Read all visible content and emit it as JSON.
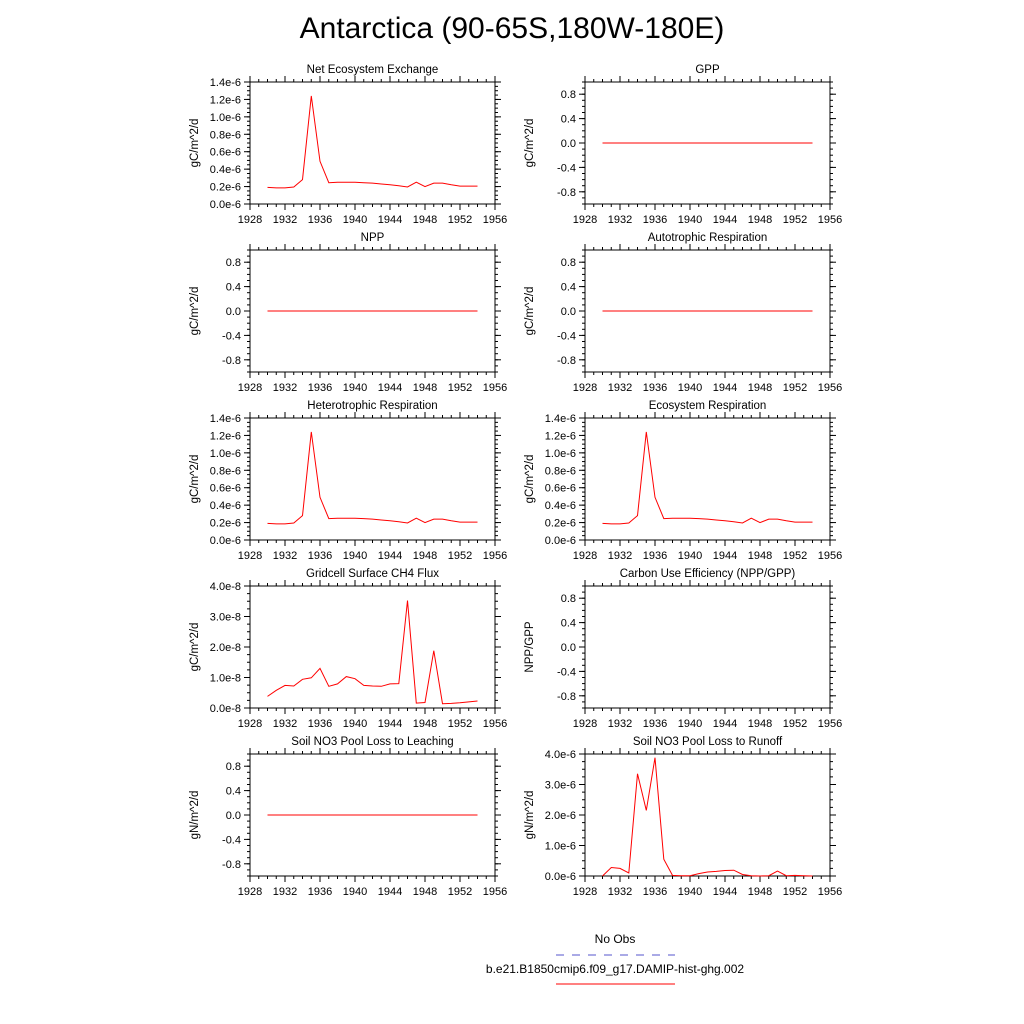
{
  "title": "Antarctica (90-65S,180W-180E)",
  "legend": {
    "obs_label": "No Obs",
    "obs_color": "#5555cc",
    "model_label": "b.e21.B1850cmip6.f09_g17.DAMIP-hist-ghg.002",
    "model_color": "#ff0000"
  },
  "chart_data": [
    {
      "type": "line",
      "title": "Net Ecosystem Exchange",
      "ylabel": "gC/m^2/d",
      "xlim": [
        1928,
        1956
      ],
      "xticks": [
        "1928",
        "1932",
        "1936",
        "1940",
        "1944",
        "1948",
        "1952",
        "1956"
      ],
      "ylim": [
        0,
        1.4e-06
      ],
      "yticks": [
        0,
        2e-07,
        4e-07,
        6e-07,
        8e-07,
        1e-06,
        1.2e-06,
        1.4e-06
      ],
      "yticklabels": [
        "0.0e-6",
        "0.2e-6",
        "0.4e-6",
        "0.6e-6",
        "0.8e-6",
        "1.0e-6",
        "1.2e-6",
        "1.4e-6"
      ],
      "series": [
        {
          "color": "#ff0000",
          "x": [
            1930,
            1931,
            1932,
            1933,
            1934,
            1935,
            1936,
            1937,
            1938,
            1939,
            1940,
            1941,
            1942,
            1943,
            1944,
            1945,
            1946,
            1947,
            1948,
            1949,
            1950,
            1951,
            1952,
            1953,
            1954
          ],
          "y": [
            1.9e-07,
            1.85e-07,
            1.85e-07,
            1.95e-07,
            2.8e-07,
            1.24e-06,
            4.9e-07,
            2.45e-07,
            2.5e-07,
            2.5e-07,
            2.5e-07,
            2.45e-07,
            2.4e-07,
            2.3e-07,
            2.2e-07,
            2.1e-07,
            1.95e-07,
            2.5e-07,
            2e-07,
            2.4e-07,
            2.4e-07,
            2.2e-07,
            2.05e-07,
            2.05e-07,
            2.05e-07
          ]
        }
      ]
    },
    {
      "type": "line",
      "title": "GPP",
      "ylabel": "gC/m^2/d",
      "xlim": [
        1928,
        1956
      ],
      "xticks": [
        "1928",
        "1932",
        "1936",
        "1940",
        "1944",
        "1948",
        "1952",
        "1956"
      ],
      "ylim": [
        -1,
        1
      ],
      "yticks": [
        -0.8,
        -0.4,
        0,
        0.4,
        0.8
      ],
      "yticklabels": [
        "-0.8",
        "-0.4",
        "0.0",
        "0.4",
        "0.8"
      ],
      "series": [
        {
          "color": "#ff0000",
          "x": [
            1930,
            1954
          ],
          "y": [
            0,
            0
          ]
        }
      ]
    },
    {
      "type": "line",
      "title": "NPP",
      "ylabel": "gC/m^2/d",
      "xlim": [
        1928,
        1956
      ],
      "xticks": [
        "1928",
        "1932",
        "1936",
        "1940",
        "1944",
        "1948",
        "1952",
        "1956"
      ],
      "ylim": [
        -1,
        1
      ],
      "yticks": [
        -0.8,
        -0.4,
        0,
        0.4,
        0.8
      ],
      "yticklabels": [
        "-0.8",
        "-0.4",
        "0.0",
        "0.4",
        "0.8"
      ],
      "series": [
        {
          "color": "#ff0000",
          "x": [
            1930,
            1954
          ],
          "y": [
            0,
            0
          ]
        }
      ]
    },
    {
      "type": "line",
      "title": "Autotrophic Respiration",
      "ylabel": "gC/m^2/d",
      "xlim": [
        1928,
        1956
      ],
      "xticks": [
        "1928",
        "1932",
        "1936",
        "1940",
        "1944",
        "1948",
        "1952",
        "1956"
      ],
      "ylim": [
        -1,
        1
      ],
      "yticks": [
        -0.8,
        -0.4,
        0,
        0.4,
        0.8
      ],
      "yticklabels": [
        "-0.8",
        "-0.4",
        "0.0",
        "0.4",
        "0.8"
      ],
      "series": [
        {
          "color": "#ff0000",
          "x": [
            1930,
            1954
          ],
          "y": [
            0,
            0
          ]
        }
      ]
    },
    {
      "type": "line",
      "title": "Heterotrophic Respiration",
      "ylabel": "gC/m^2/d",
      "xlim": [
        1928,
        1956
      ],
      "xticks": [
        "1928",
        "1932",
        "1936",
        "1940",
        "1944",
        "1948",
        "1952",
        "1956"
      ],
      "ylim": [
        0,
        1.4e-06
      ],
      "yticks": [
        0,
        2e-07,
        4e-07,
        6e-07,
        8e-07,
        1e-06,
        1.2e-06,
        1.4e-06
      ],
      "yticklabels": [
        "0.0e-6",
        "0.2e-6",
        "0.4e-6",
        "0.6e-6",
        "0.8e-6",
        "1.0e-6",
        "1.2e-6",
        "1.4e-6"
      ],
      "series": [
        {
          "color": "#ff0000",
          "x": [
            1930,
            1931,
            1932,
            1933,
            1934,
            1935,
            1936,
            1937,
            1938,
            1939,
            1940,
            1941,
            1942,
            1943,
            1944,
            1945,
            1946,
            1947,
            1948,
            1949,
            1950,
            1951,
            1952,
            1953,
            1954
          ],
          "y": [
            1.9e-07,
            1.85e-07,
            1.85e-07,
            1.95e-07,
            2.8e-07,
            1.24e-06,
            4.9e-07,
            2.45e-07,
            2.5e-07,
            2.5e-07,
            2.5e-07,
            2.45e-07,
            2.4e-07,
            2.3e-07,
            2.2e-07,
            2.1e-07,
            1.95e-07,
            2.5e-07,
            2e-07,
            2.4e-07,
            2.4e-07,
            2.2e-07,
            2.05e-07,
            2.05e-07,
            2.05e-07
          ]
        }
      ]
    },
    {
      "type": "line",
      "title": "Ecosystem Respiration",
      "ylabel": "gC/m^2/d",
      "xlim": [
        1928,
        1956
      ],
      "xticks": [
        "1928",
        "1932",
        "1936",
        "1940",
        "1944",
        "1948",
        "1952",
        "1956"
      ],
      "ylim": [
        0,
        1.4e-06
      ],
      "yticks": [
        0,
        2e-07,
        4e-07,
        6e-07,
        8e-07,
        1e-06,
        1.2e-06,
        1.4e-06
      ],
      "yticklabels": [
        "0.0e-6",
        "0.2e-6",
        "0.4e-6",
        "0.6e-6",
        "0.8e-6",
        "1.0e-6",
        "1.2e-6",
        "1.4e-6"
      ],
      "series": [
        {
          "color": "#ff0000",
          "x": [
            1930,
            1931,
            1932,
            1933,
            1934,
            1935,
            1936,
            1937,
            1938,
            1939,
            1940,
            1941,
            1942,
            1943,
            1944,
            1945,
            1946,
            1947,
            1948,
            1949,
            1950,
            1951,
            1952,
            1953,
            1954
          ],
          "y": [
            1.9e-07,
            1.85e-07,
            1.85e-07,
            1.95e-07,
            2.8e-07,
            1.24e-06,
            4.9e-07,
            2.45e-07,
            2.5e-07,
            2.5e-07,
            2.5e-07,
            2.45e-07,
            2.4e-07,
            2.3e-07,
            2.2e-07,
            2.1e-07,
            1.95e-07,
            2.5e-07,
            2e-07,
            2.4e-07,
            2.4e-07,
            2.2e-07,
            2.05e-07,
            2.05e-07,
            2.05e-07
          ]
        }
      ]
    },
    {
      "type": "line",
      "title": "Gridcell Surface CH4 Flux",
      "ylabel": "gC/m^2/d",
      "xlim": [
        1928,
        1956
      ],
      "xticks": [
        "1928",
        "1932",
        "1936",
        "1940",
        "1944",
        "1948",
        "1952",
        "1956"
      ],
      "ylim": [
        0,
        4e-08
      ],
      "yticks": [
        0,
        1e-08,
        2e-08,
        3e-08,
        4e-08
      ],
      "yticklabels": [
        "0.0e-8",
        "1.0e-8",
        "2.0e-8",
        "3.0e-8",
        "4.0e-8"
      ],
      "series": [
        {
          "color": "#ff0000",
          "x": [
            1930,
            1931,
            1932,
            1933,
            1934,
            1935,
            1936,
            1937,
            1938,
            1939,
            1940,
            1941,
            1942,
            1943,
            1944,
            1945,
            1946,
            1947,
            1948,
            1949,
            1950,
            1951,
            1952,
            1953,
            1954
          ],
          "y": [
            3.8e-09,
            5.8e-09,
            7.4e-09,
            7.2e-09,
            9.4e-09,
            9.9e-09,
            1.3e-08,
            7.1e-09,
            7.9e-09,
            1.03e-08,
            9.6e-09,
            7.4e-09,
            7.2e-09,
            7.1e-09,
            7.9e-09,
            8e-09,
            3.52e-08,
            1.6e-09,
            1.8e-09,
            1.88e-08,
            1.4e-09,
            1.5e-09,
            1.7e-09,
            2e-09,
            2.3e-09
          ]
        }
      ]
    },
    {
      "type": "line",
      "title": "Carbon Use Efficiency (NPP/GPP)",
      "ylabel": "NPP/GPP",
      "xlim": [
        1928,
        1956
      ],
      "xticks": [
        "1928",
        "1932",
        "1936",
        "1940",
        "1944",
        "1948",
        "1952",
        "1956"
      ],
      "ylim": [
        -1,
        1
      ],
      "yticks": [
        -0.8,
        -0.4,
        0,
        0.4,
        0.8
      ],
      "yticklabels": [
        "-0.8",
        "-0.4",
        "0.0",
        "0.4",
        "0.8"
      ],
      "series": []
    },
    {
      "type": "line",
      "title": "Soil NO3 Pool Loss to Leaching",
      "ylabel": "gN/m^2/d",
      "xlim": [
        1928,
        1956
      ],
      "xticks": [
        "1928",
        "1932",
        "1936",
        "1940",
        "1944",
        "1948",
        "1952",
        "1956"
      ],
      "ylim": [
        -1,
        1
      ],
      "yticks": [
        -0.8,
        -0.4,
        0,
        0.4,
        0.8
      ],
      "yticklabels": [
        "-0.8",
        "-0.4",
        "0.0",
        "0.4",
        "0.8"
      ],
      "series": [
        {
          "color": "#ff0000",
          "x": [
            1930,
            1954
          ],
          "y": [
            0,
            0
          ]
        }
      ]
    },
    {
      "type": "line",
      "title": "Soil NO3 Pool Loss to Runoff",
      "ylabel": "gN/m^2/d",
      "xlim": [
        1928,
        1956
      ],
      "xticks": [
        "1928",
        "1932",
        "1936",
        "1940",
        "1944",
        "1948",
        "1952",
        "1956"
      ],
      "ylim": [
        0,
        4e-06
      ],
      "yticks": [
        0,
        1e-06,
        2e-06,
        3e-06,
        4e-06
      ],
      "yticklabels": [
        "0.0e-6",
        "1.0e-6",
        "2.0e-6",
        "3.0e-6",
        "4.0e-6"
      ],
      "series": [
        {
          "color": "#ff0000",
          "x": [
            1930,
            1931,
            1932,
            1933,
            1934,
            1935,
            1936,
            1937,
            1938,
            1939,
            1940,
            1941,
            1942,
            1943,
            1944,
            1945,
            1946,
            1947,
            1948,
            1949,
            1950,
            1951,
            1952,
            1953,
            1954
          ],
          "y": [
            0,
            2.8e-07,
            2.5e-07,
            1e-07,
            3.35e-06,
            2.15e-06,
            3.88e-06,
            5.5e-07,
            2e-08,
            1e-08,
            1e-08,
            8e-08,
            1.3e-07,
            1.5e-07,
            1.8e-07,
            1.9e-07,
            5e-08,
            1e-08,
            0,
            1e-08,
            1.6e-07,
            1e-08,
            2e-08,
            1e-08,
            0
          ]
        }
      ]
    }
  ]
}
